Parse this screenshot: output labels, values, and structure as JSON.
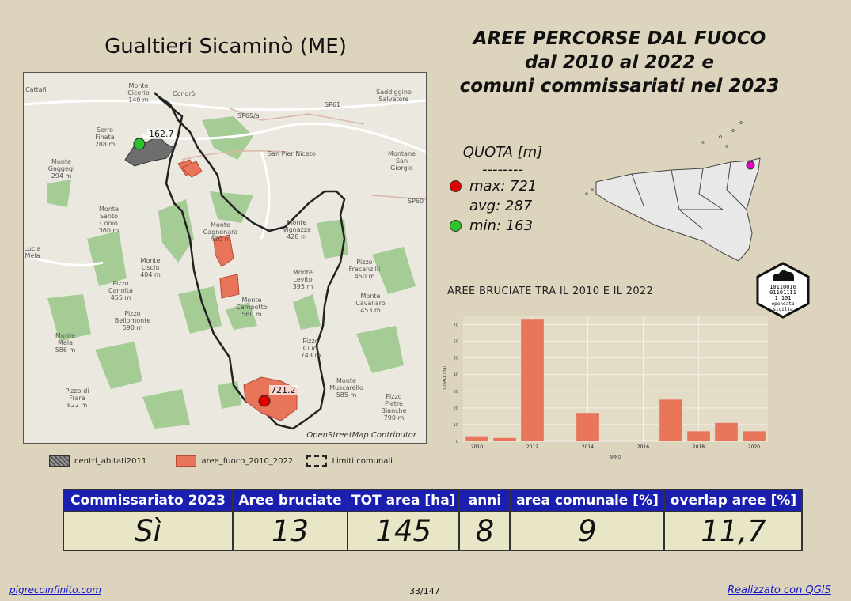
{
  "municipality_title": "Gualtieri Sicaminò (ME)",
  "main_title": [
    "AREE PERCORSE DAL FUOCO",
    "dal 2010 al 2022 e",
    "comuni commissariati nel 2023"
  ],
  "map": {
    "attribution": "OpenStreetMap Contributor",
    "max_label": "721.2",
    "min_label": "162.7",
    "places": [
      {
        "name": "Cattafi"
      },
      {
        "name": "Monte Cicerio",
        "elev": "140 m"
      },
      {
        "name": "Condrò"
      },
      {
        "name": "Saddiggino Salvatore"
      },
      {
        "name": "Serro Finata",
        "elev": "288 m"
      },
      {
        "name": "Monte Gaggegi",
        "elev": "294 m"
      },
      {
        "name": "San Pier Niceto"
      },
      {
        "name": "Montane San Giorgio"
      },
      {
        "name": "Monte Santo Conio",
        "elev": "360 m"
      },
      {
        "name": "Monte Cagnonara",
        "elev": "420 m"
      },
      {
        "name": "Monte Vignazza",
        "elev": "428 m"
      },
      {
        "name": "Monte Lisciu",
        "elev": "404 m"
      },
      {
        "name": "Pizzo Fracanzilli",
        "elev": "450 m"
      },
      {
        "name": "Monte Levito",
        "elev": "395 m"
      },
      {
        "name": "Pizzo Cannita",
        "elev": "455 m"
      },
      {
        "name": "Monte Campotto",
        "elev": "580 m"
      },
      {
        "name": "Monte Cavallaro",
        "elev": "453 m"
      },
      {
        "name": "Pizzo Bellomonte",
        "elev": "590 m"
      },
      {
        "name": "Monte Mela",
        "elev": "586 m"
      },
      {
        "name": "Pizzo Ciuci",
        "elev": "743 m"
      },
      {
        "name": "Pizzo di Frara",
        "elev": "822 m"
      },
      {
        "name": "Pizzo Pietre Bianche",
        "elev": "790 m"
      },
      {
        "name": "Monte Muscarello",
        "elev": "585 m"
      },
      {
        "name": "Lucia Mela"
      },
      {
        "name": "SP61"
      },
      {
        "name": "SP65/a"
      },
      {
        "name": "SP60"
      }
    ]
  },
  "legend": [
    {
      "label": "centri_abitati2011",
      "color": "#7a7a7a"
    },
    {
      "label": "aree_fuoco_2010_2022",
      "color": "#e8745a"
    },
    {
      "label": "Limiti comunali",
      "color": "none"
    }
  ],
  "quota": {
    "title": "QUOTA [m]",
    "separator": "--------",
    "max": "max: 721",
    "avg": "avg: 287",
    "min": "min: 163",
    "max_color": "#e00000",
    "min_color": "#2cc22c"
  },
  "badge": {
    "bits": [
      "10110010",
      "01101111",
      "1  101",
      "1   0"
    ],
    "text": [
      "opendata",
      "sicilia"
    ]
  },
  "chart_data": {
    "type": "bar",
    "title": "AREE BRUCIATE TRA IL 2010 E IL 2022",
    "xlabel": "ANNO",
    "ylabel": "TOTALE [ha]",
    "x": [
      2010,
      2011,
      2012,
      2014,
      2017,
      2018,
      2019,
      2020
    ],
    "values": [
      3,
      2,
      73,
      17,
      25,
      6,
      11,
      6
    ],
    "x_ticks": [
      "2010",
      "2012",
      "2014",
      "2016",
      "2018",
      "2020"
    ],
    "y_ticks": [
      "0",
      "10",
      "20",
      "30",
      "40",
      "50",
      "60",
      "70"
    ],
    "xlim": [
      2009.5,
      2020.5
    ],
    "ylim": [
      0,
      75
    ],
    "bar_color": "#e8745a",
    "grid": true
  },
  "table": {
    "headers": [
      "Commissariato 2023",
      "Aree bruciate",
      "TOT area [ha]",
      "anni",
      "area comunale [%]",
      "overlap aree [%]"
    ],
    "values": [
      "Sì",
      "13",
      "145",
      "8",
      "9",
      "11,7"
    ]
  },
  "footer": {
    "left": "pigrecoinfinito.com",
    "center": "33/147",
    "right": "Realizzato con QGIS"
  }
}
